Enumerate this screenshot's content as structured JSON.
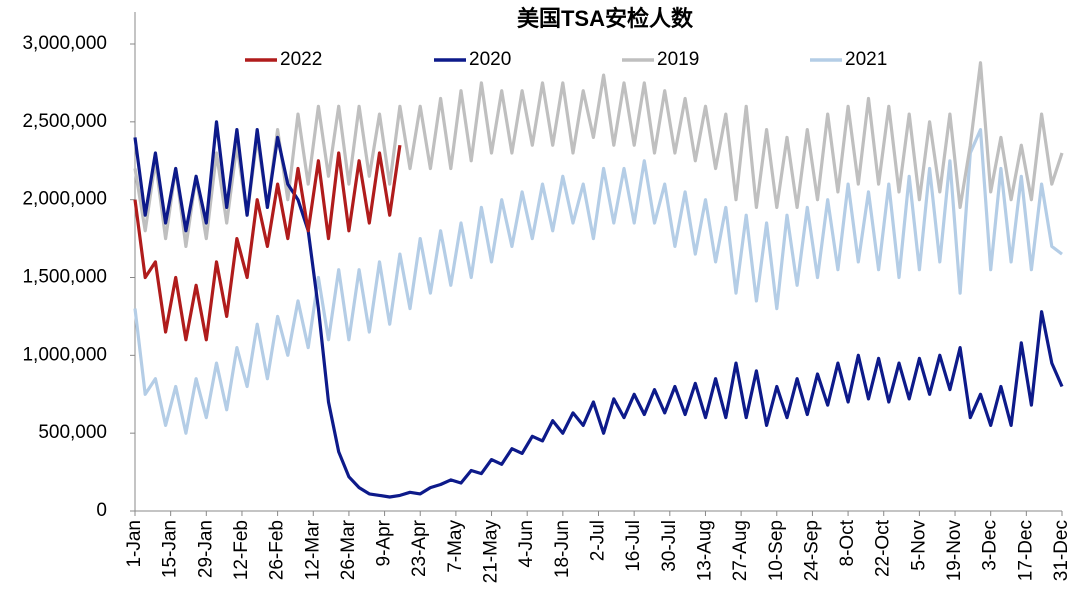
{
  "chart_data": {
    "type": "line",
    "title": "美国TSA安检人数",
    "x": [
      1,
      5,
      9,
      13,
      17,
      21,
      25,
      29,
      33,
      37,
      41,
      45,
      49,
      53,
      57,
      61,
      65,
      69,
      73,
      77,
      81,
      85,
      89,
      93,
      97,
      101,
      105,
      109,
      113,
      117,
      121,
      125,
      129,
      133,
      137,
      141,
      145,
      149,
      153,
      157,
      161,
      165,
      169,
      173,
      177,
      181,
      185,
      189,
      193,
      197,
      201,
      205,
      209,
      213,
      217,
      221,
      225,
      229,
      233,
      237,
      241,
      245,
      249,
      253,
      257,
      261,
      265,
      269,
      273,
      277,
      281,
      285,
      289,
      293,
      297,
      301,
      305,
      309,
      313,
      317,
      321,
      325,
      329,
      333,
      337,
      341,
      345,
      349,
      353,
      357,
      361,
      365
    ],
    "xlim": [
      1,
      365
    ],
    "xticks": [
      {
        "value": 1,
        "label": "1-Jan"
      },
      {
        "value": 15,
        "label": "15-Jan"
      },
      {
        "value": 29,
        "label": "29-Jan"
      },
      {
        "value": 43,
        "label": "12-Feb"
      },
      {
        "value": 57,
        "label": "26-Feb"
      },
      {
        "value": 71,
        "label": "12-Mar"
      },
      {
        "value": 85,
        "label": "26-Mar"
      },
      {
        "value": 99,
        "label": "9-Apr"
      },
      {
        "value": 113,
        "label": "23-Apr"
      },
      {
        "value": 127,
        "label": "7-May"
      },
      {
        "value": 141,
        "label": "21-May"
      },
      {
        "value": 155,
        "label": "4-Jun"
      },
      {
        "value": 169,
        "label": "18-Jun"
      },
      {
        "value": 183,
        "label": "2-Jul"
      },
      {
        "value": 197,
        "label": "16-Jul"
      },
      {
        "value": 211,
        "label": "30-Jul"
      },
      {
        "value": 225,
        "label": "13-Aug"
      },
      {
        "value": 239,
        "label": "27-Aug"
      },
      {
        "value": 253,
        "label": "10-Sep"
      },
      {
        "value": 267,
        "label": "24-Sep"
      },
      {
        "value": 281,
        "label": "8-Oct"
      },
      {
        "value": 295,
        "label": "22-Oct"
      },
      {
        "value": 309,
        "label": "5-Nov"
      },
      {
        "value": 323,
        "label": "19-Nov"
      },
      {
        "value": 337,
        "label": "3-Dec"
      },
      {
        "value": 351,
        "label": "17-Dec"
      },
      {
        "value": 365,
        "label": "31-Dec"
      }
    ],
    "ylim": [
      0,
      3000000
    ],
    "yticks": [
      0,
      {
        "value": 500000,
        "label": "500,000"
      },
      {
        "value": 1000000,
        "label": "1,000,000"
      },
      {
        "value": 1500000,
        "label": "1,500,000"
      },
      {
        "value": 2000000,
        "label": "2,000,000"
      },
      {
        "value": 2500000,
        "label": "2,500,000"
      },
      {
        "value": 3000000,
        "label": "3,000,000"
      }
    ],
    "legend": "top",
    "series": [
      {
        "name": "2022",
        "color": "#b01c1c",
        "values": [
          2000000,
          1500000,
          1600000,
          1150000,
          1500000,
          1100000,
          1450000,
          1100000,
          1600000,
          1250000,
          1750000,
          1500000,
          2000000,
          1700000,
          2100000,
          1750000,
          2200000,
          1800000,
          2250000,
          1750000,
          2300000,
          1800000,
          2250000,
          1850000,
          2300000,
          1900000,
          2350000,
          null,
          null,
          null,
          null,
          null,
          null,
          null,
          null,
          null,
          null,
          null,
          null,
          null,
          null,
          null,
          null,
          null,
          null,
          null,
          null,
          null,
          null,
          null,
          null,
          null,
          null,
          null,
          null,
          null,
          null,
          null,
          null,
          null,
          null,
          null,
          null,
          null,
          null,
          null,
          null,
          null,
          null,
          null,
          null,
          null,
          null,
          null,
          null,
          null,
          null,
          null,
          null,
          null,
          null,
          null,
          null,
          null,
          null,
          null,
          null,
          null,
          null,
          null,
          null,
          null
        ]
      },
      {
        "name": "2020",
        "color": "#0d1a8a",
        "values": [
          2400000,
          1900000,
          2300000,
          1850000,
          2200000,
          1800000,
          2150000,
          1850000,
          2500000,
          1950000,
          2450000,
          1900000,
          2450000,
          1950000,
          2400000,
          2100000,
          2000000,
          1800000,
          1300000,
          700000,
          380000,
          220000,
          150000,
          110000,
          100000,
          90000,
          100000,
          120000,
          110000,
          150000,
          170000,
          200000,
          180000,
          260000,
          240000,
          330000,
          300000,
          400000,
          370000,
          480000,
          450000,
          580000,
          500000,
          630000,
          550000,
          700000,
          500000,
          720000,
          600000,
          750000,
          620000,
          780000,
          630000,
          800000,
          620000,
          820000,
          600000,
          850000,
          600000,
          950000,
          600000,
          900000,
          550000,
          800000,
          600000,
          850000,
          620000,
          880000,
          680000,
          950000,
          700000,
          1000000,
          720000,
          980000,
          700000,
          950000,
          720000,
          980000,
          750000,
          1000000,
          780000,
          1050000,
          600000,
          750000,
          550000,
          800000,
          550000,
          1080000,
          680000,
          1280000,
          950000,
          800000
        ]
      },
      {
        "name": "2019",
        "color": "#bfbfbf",
        "values": [
          2200000,
          1800000,
          2250000,
          1750000,
          2200000,
          1700000,
          2150000,
          1750000,
          2300000,
          1850000,
          2350000,
          1900000,
          2400000,
          1950000,
          2450000,
          2000000,
          2550000,
          2100000,
          2600000,
          2150000,
          2600000,
          2100000,
          2600000,
          2150000,
          2550000,
          2100000,
          2600000,
          2200000,
          2600000,
          2200000,
          2650000,
          2200000,
          2700000,
          2250000,
          2750000,
          2300000,
          2700000,
          2300000,
          2700000,
          2350000,
          2750000,
          2350000,
          2750000,
          2300000,
          2700000,
          2400000,
          2800000,
          2350000,
          2750000,
          2350000,
          2750000,
          2300000,
          2700000,
          2300000,
          2650000,
          2250000,
          2600000,
          2200000,
          2550000,
          2000000,
          2600000,
          1950000,
          2450000,
          1950000,
          2400000,
          1950000,
          2450000,
          2000000,
          2550000,
          2050000,
          2600000,
          2100000,
          2650000,
          2100000,
          2600000,
          2050000,
          2550000,
          2000000,
          2500000,
          2050000,
          2550000,
          1950000,
          2350000,
          2880000,
          2050000,
          2400000,
          2000000,
          2350000,
          2000000,
          2550000,
          2100000,
          2300000
        ]
      },
      {
        "name": "2021",
        "color": "#b4cde6",
        "values": [
          1300000,
          750000,
          850000,
          550000,
          800000,
          500000,
          850000,
          600000,
          950000,
          650000,
          1050000,
          800000,
          1200000,
          850000,
          1250000,
          1000000,
          1350000,
          1050000,
          1500000,
          1100000,
          1550000,
          1100000,
          1550000,
          1150000,
          1600000,
          1200000,
          1650000,
          1300000,
          1750000,
          1400000,
          1800000,
          1450000,
          1850000,
          1500000,
          1950000,
          1600000,
          2000000,
          1700000,
          2050000,
          1750000,
          2100000,
          1800000,
          2150000,
          1850000,
          2100000,
          1750000,
          2200000,
          1850000,
          2200000,
          1850000,
          2250000,
          1850000,
          2100000,
          1700000,
          2050000,
          1650000,
          2000000,
          1600000,
          1950000,
          1400000,
          1900000,
          1350000,
          1850000,
          1300000,
          1900000,
          1450000,
          1950000,
          1500000,
          2000000,
          1550000,
          2100000,
          1600000,
          2050000,
          1550000,
          2100000,
          1500000,
          2150000,
          1550000,
          2200000,
          1600000,
          2250000,
          1400000,
          2300000,
          2450000,
          1550000,
          2200000,
          1600000,
          2150000,
          1550000,
          2100000,
          1700000,
          1650000
        ]
      }
    ]
  }
}
